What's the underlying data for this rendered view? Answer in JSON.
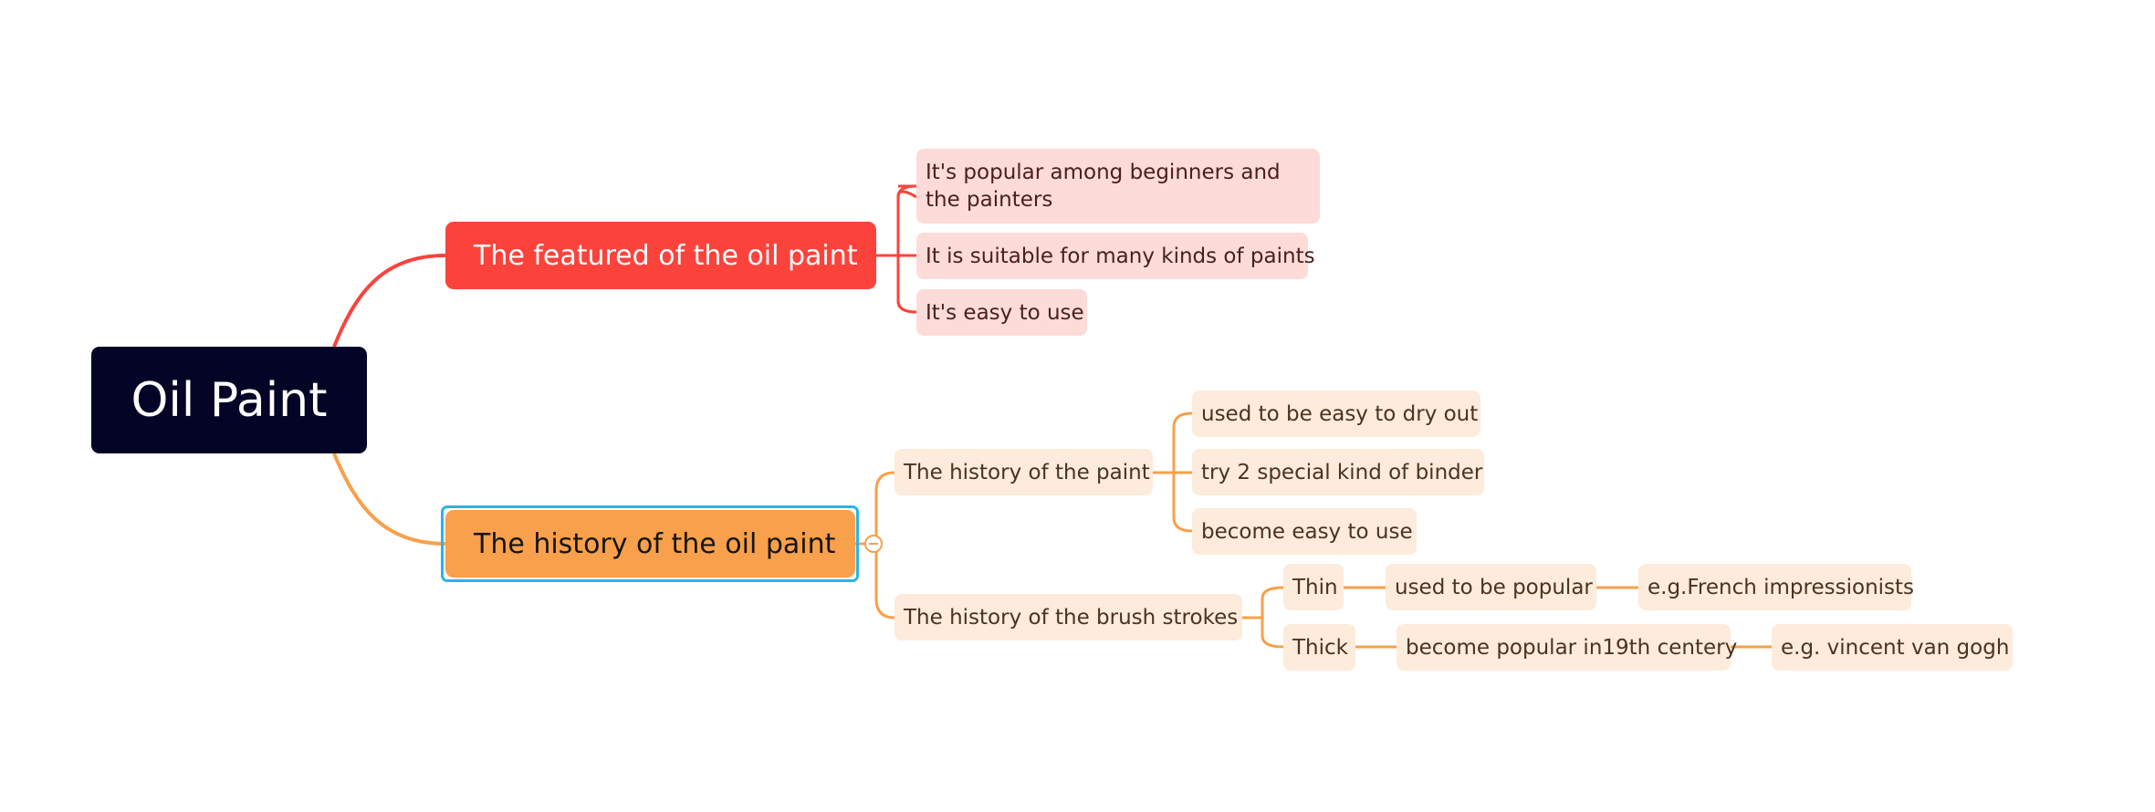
{
  "colors": {
    "root_bg": "#030426",
    "red_branch": "#fb433c",
    "orange_branch": "#f8a04b",
    "pink_node": "#fddbd8",
    "peach_node": "#fdebdb",
    "selection": "#2ab4e8"
  },
  "root": {
    "label": "Oil Paint"
  },
  "branches": {
    "featured": {
      "label": "The featured of the oil paint",
      "children": [
        "It's popular among beginners and the painters",
        "It is suitable for many kinds of paints",
        "It's easy to use"
      ]
    },
    "history": {
      "label": "The history of the oil paint",
      "paint": {
        "label": "The history of the paint",
        "children": [
          "used to be easy to dry out",
          "try 2 special kind of binder",
          "become easy to use"
        ]
      },
      "brush": {
        "label": "The history of the brush strokes",
        "thin": {
          "label": "Thin",
          "detail": "used to be popular",
          "example": "e.g.French impressionists"
        },
        "thick": {
          "label": "Thick",
          "detail": "become popular in19th centery",
          "example": "e.g. vincent van gogh"
        }
      }
    }
  }
}
